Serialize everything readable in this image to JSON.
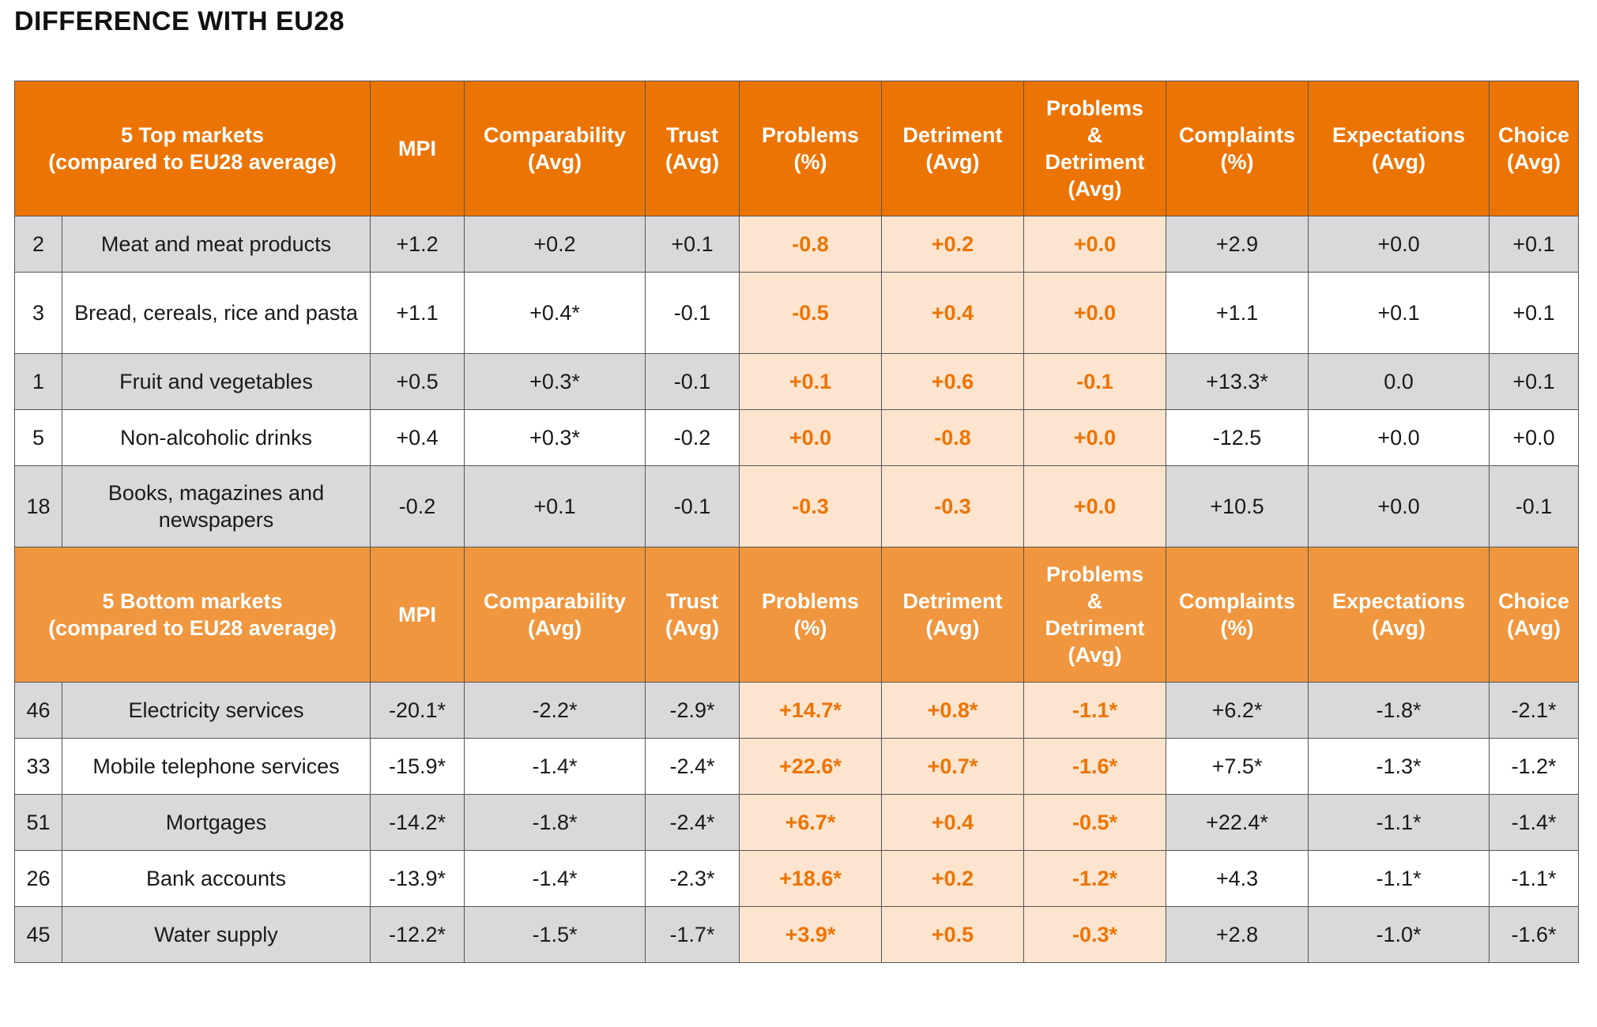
{
  "title": "DIFFERENCE WITH EU28",
  "colors": {
    "top_header": "#ec7404",
    "bottom_header": "#f0963e",
    "highlight_bg": "#fde4cf",
    "highlight_text": "#ec7404",
    "row_grey": "#d9d9db"
  },
  "headers": {
    "top_label": [
      "5 Top markets",
      "(compared to EU28 average)"
    ],
    "bottom_label": [
      "5 Bottom markets",
      "(compared to EU28 average)"
    ],
    "columns": [
      [
        "MPI"
      ],
      [
        "Comparability",
        "(Avg)"
      ],
      [
        "Trust",
        "(Avg)"
      ],
      [
        "Problems",
        "(%)"
      ],
      [
        "Detriment",
        "(Avg)"
      ],
      [
        "Problems",
        "&",
        "Detriment",
        "(Avg)"
      ],
      [
        "Complaints",
        "(%)"
      ],
      [
        "Expectations",
        "(Avg)"
      ],
      [
        "Choice",
        "(Avg)"
      ]
    ]
  },
  "chart_data": {
    "type": "table",
    "title": "DIFFERENCE WITH EU28",
    "columns": [
      "MPI",
      "Comparability (Avg)",
      "Trust (Avg)",
      "Problems (%)",
      "Detriment (Avg)",
      "Problems & Detriment (Avg)",
      "Complaints (%)",
      "Expectations (Avg)",
      "Choice (Avg)"
    ],
    "highlighted_columns": [
      3,
      4,
      5
    ],
    "top_markets": [
      {
        "rank": "2",
        "market": "Meat and meat products",
        "values": [
          "+1.2",
          "+0.2",
          "+0.1",
          "-0.8",
          "+0.2",
          "+0.0",
          "+2.9",
          "+0.0",
          "+0.1"
        ]
      },
      {
        "rank": "3",
        "market": "Bread, cereals, rice and pasta",
        "values": [
          "+1.1",
          "+0.4*",
          "-0.1",
          "-0.5",
          "+0.4",
          "+0.0",
          "+1.1",
          "+0.1",
          "+0.1"
        ]
      },
      {
        "rank": "1",
        "market": "Fruit and vegetables",
        "values": [
          "+0.5",
          "+0.3*",
          "-0.1",
          "+0.1",
          "+0.6",
          "-0.1",
          "+13.3*",
          "0.0",
          "+0.1"
        ]
      },
      {
        "rank": "5",
        "market": "Non-alcoholic drinks",
        "values": [
          "+0.4",
          "+0.3*",
          "-0.2",
          "+0.0",
          "-0.8",
          "+0.0",
          "-12.5",
          "+0.0",
          "+0.0"
        ]
      },
      {
        "rank": "18",
        "market": "Books, magazines and newspapers",
        "values": [
          "-0.2",
          "+0.1",
          "-0.1",
          "-0.3",
          "-0.3",
          "+0.0",
          "+10.5",
          "+0.0",
          "-0.1"
        ]
      }
    ],
    "bottom_markets": [
      {
        "rank": "46",
        "market": "Electricity services",
        "values": [
          "-20.1*",
          "-2.2*",
          "-2.9*",
          "+14.7*",
          "+0.8*",
          "-1.1*",
          "+6.2*",
          "-1.8*",
          "-2.1*"
        ]
      },
      {
        "rank": "33",
        "market": "Mobile telephone services",
        "values": [
          "-15.9*",
          "-1.4*",
          "-2.4*",
          "+22.6*",
          "+0.7*",
          "-1.6*",
          "+7.5*",
          "-1.3*",
          "-1.2*"
        ]
      },
      {
        "rank": "51",
        "market": "Mortgages",
        "values": [
          "-14.2*",
          "-1.8*",
          "-2.4*",
          "+6.7*",
          "+0.4",
          "-0.5*",
          "+22.4*",
          "-1.1*",
          "-1.4*"
        ]
      },
      {
        "rank": "26",
        "market": "Bank accounts",
        "values": [
          "-13.9*",
          "-1.4*",
          "-2.3*",
          "+18.6*",
          "+0.2",
          "-1.2*",
          "+4.3",
          "-1.1*",
          "-1.1*"
        ]
      },
      {
        "rank": "45",
        "market": "Water supply",
        "values": [
          "-12.2*",
          "-1.5*",
          "-1.7*",
          "+3.9*",
          "+0.5",
          "-0.3*",
          "+2.8",
          "-1.0*",
          "-1.6*"
        ]
      }
    ]
  }
}
